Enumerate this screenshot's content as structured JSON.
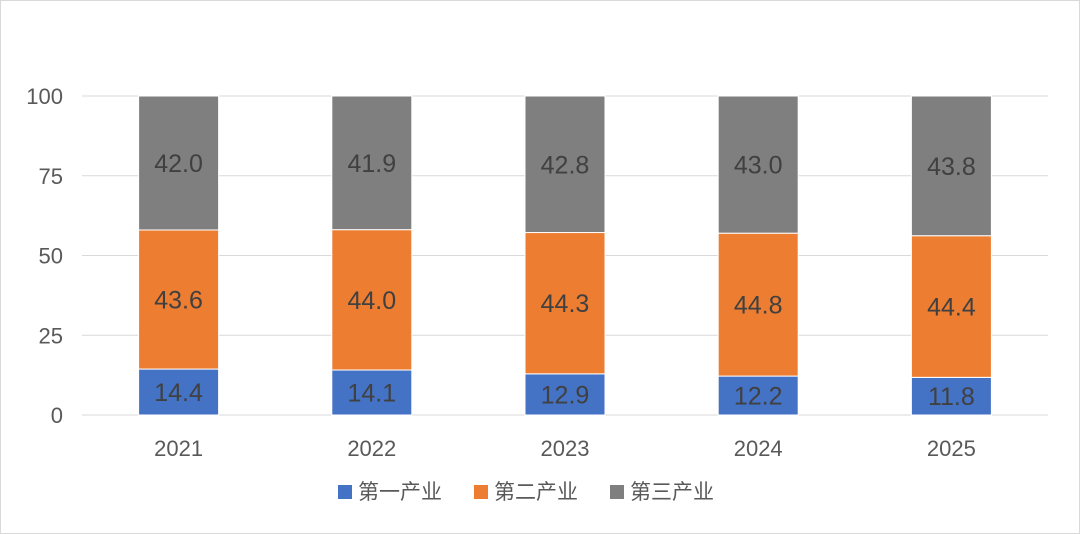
{
  "chart_data": {
    "type": "bar",
    "stacked": true,
    "title": "",
    "xlabel": "",
    "ylabel": "",
    "ylim": [
      0,
      100
    ],
    "yticks": [
      0,
      25,
      50,
      75,
      100
    ],
    "categories": [
      "2021",
      "2022",
      "2023",
      "2024",
      "2025"
    ],
    "series": [
      {
        "name": "第一产业",
        "color": "#4472C4",
        "values": [
          14.4,
          14.1,
          12.9,
          12.2,
          11.8
        ]
      },
      {
        "name": "第二产业",
        "color": "#ED7D31",
        "values": [
          43.6,
          44.0,
          44.3,
          44.8,
          44.4
        ]
      },
      {
        "name": "第三产业",
        "color": "#7F7F7F",
        "values": [
          42.0,
          41.9,
          42.8,
          43.0,
          43.8
        ]
      }
    ],
    "grid": true,
    "legend_position": "bottom"
  }
}
